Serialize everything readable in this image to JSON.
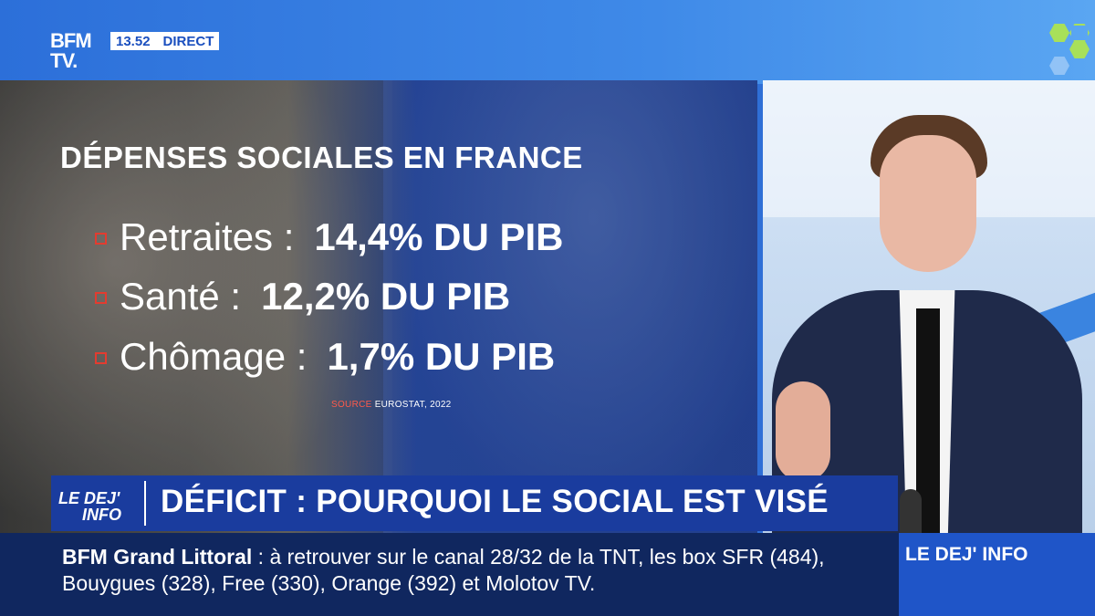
{
  "header": {
    "logo_line1": "BFM",
    "logo_line2": "TV.",
    "time": "13.52",
    "live_label": "DIRECT"
  },
  "graphic": {
    "title": "DÉPENSES SOCIALES EN FRANCE",
    "items": [
      {
        "label": "Retraites :",
        "value": "14,4% DU PIB"
      },
      {
        "label": "Santé :",
        "value": "12,2% DU PIB"
      },
      {
        "label": "Chômage :",
        "value": "1,7% DU PIB"
      }
    ],
    "source_label": "SOURCE",
    "source_value": "EUROSTAT, 2022"
  },
  "headline": {
    "show_logo_line1": "LE DEJ'",
    "show_logo_line2": "INFO",
    "text": "DÉFICIT : POURQUOI LE SOCIAL EST VISÉ"
  },
  "ticker": {
    "channel": "BFM Grand Littoral",
    "text": ": à retrouver sur le canal 28/32 de la TNT, les box SFR (484), Bouygues (328), Free (330), Orange (392) et Molotov TV."
  },
  "show": {
    "name": "LE DEJ' INFO"
  },
  "colors": {
    "brand_blue": "#1a3c9e",
    "bullet_red": "#e23c30",
    "hex_green": "#a8e05a"
  }
}
